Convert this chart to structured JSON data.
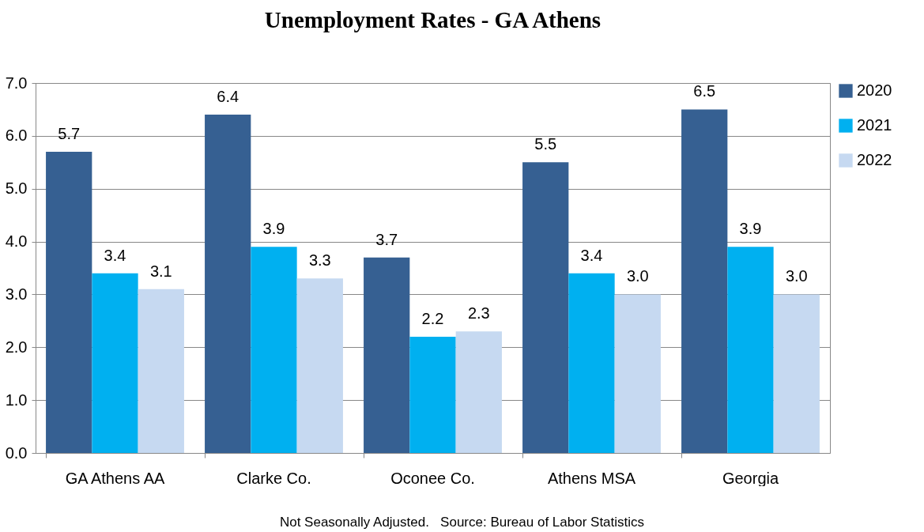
{
  "chart_data": {
    "type": "bar",
    "title": "Unemployment Rates - GA Athens",
    "categories": [
      "GA Athens AA",
      "Clarke Co.",
      "Oconee Co.",
      "Athens MSA",
      "Georgia"
    ],
    "series": [
      {
        "name": "2020",
        "color": "#366092",
        "values": [
          5.7,
          6.4,
          3.7,
          5.5,
          6.5
        ],
        "value_labels": [
          "5.7",
          "6.4",
          "3.7",
          "5.5",
          "6.5"
        ]
      },
      {
        "name": "2021",
        "color": "#00b0f0",
        "values": [
          3.4,
          3.9,
          2.2,
          3.4,
          3.9
        ],
        "value_labels": [
          "3.4",
          "3.9",
          "2.2",
          "3.4",
          "3.9"
        ]
      },
      {
        "name": "2022",
        "color": "#c6d9f1",
        "values": [
          3.1,
          3.3,
          2.3,
          3.0,
          3.0
        ],
        "value_labels": [
          "3.1",
          "3.3",
          "2.3",
          "3.0",
          "3.0"
        ]
      }
    ],
    "ylim": [
      0,
      7
    ],
    "yticks": [
      {
        "value": 0,
        "label": "0.0"
      },
      {
        "value": 1,
        "label": "1.0"
      },
      {
        "value": 2,
        "label": "2.0"
      },
      {
        "value": 3,
        "label": "3.0"
      },
      {
        "value": 4,
        "label": "4.0"
      },
      {
        "value": 5,
        "label": "5.0"
      },
      {
        "value": 6,
        "label": "6.0"
      },
      {
        "value": 7,
        "label": "7.0"
      }
    ],
    "grid": "y",
    "legend": "right",
    "annotations": [
      "Not Seasonally Adjusted.   Source: Bureau of Labor Statistics"
    ]
  }
}
